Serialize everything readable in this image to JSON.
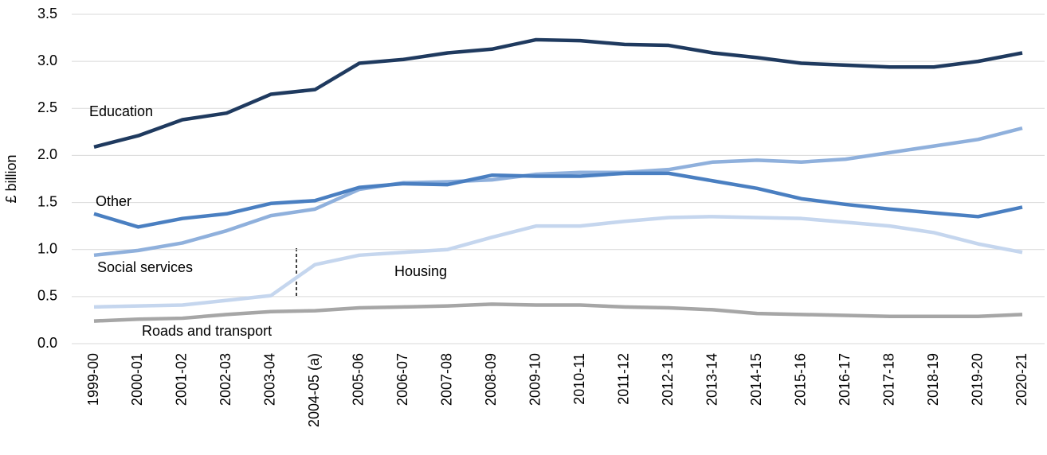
{
  "chart_data": {
    "type": "line",
    "y_label": "£ billion",
    "categories": [
      "1999-00",
      "2000-01",
      "2001-02",
      "2002-03",
      "2003-04",
      "2004-05 (a)",
      "2005-06",
      "2006-07",
      "2007-08",
      "2008-09",
      "2009-10",
      "2010-11",
      "2011-12",
      "2012-13",
      "2013-14",
      "2014-15",
      "2015-16",
      "2016-17",
      "2017-18",
      "2018-19",
      "2019-20",
      "2020-21"
    ],
    "ylim": [
      0,
      3.5
    ],
    "yticks": [
      {
        "value": 0,
        "label": "0.0"
      },
      0.5,
      {
        "value": 1,
        "label": "1.0"
      },
      1.5,
      {
        "value": 2,
        "label": "2.0"
      },
      2.5,
      {
        "value": 3,
        "label": "3.0"
      },
      3.5
    ],
    "grid": true,
    "series": [
      {
        "name": "Education",
        "color": "#1f3a5f",
        "values": [
          2.09,
          2.21,
          2.38,
          2.45,
          2.65,
          2.7,
          2.98,
          3.02,
          3.09,
          3.13,
          3.23,
          3.22,
          3.18,
          3.17,
          3.09,
          3.04,
          2.98,
          2.96,
          2.94,
          2.94,
          3.0,
          3.09
        ]
      },
      {
        "name": "Other",
        "color": "#4a7fc1",
        "values": [
          1.38,
          1.24,
          1.33,
          1.38,
          1.49,
          1.52,
          1.66,
          1.7,
          1.69,
          1.79,
          1.78,
          1.78,
          1.81,
          1.81,
          1.73,
          1.65,
          1.54,
          1.48,
          1.43,
          1.39,
          1.35,
          1.45
        ]
      },
      {
        "name": "Social services",
        "color": "#8fb0dc",
        "values": [
          0.94,
          0.99,
          1.07,
          1.2,
          1.36,
          1.43,
          1.64,
          1.71,
          1.72,
          1.74,
          1.8,
          1.82,
          1.82,
          1.85,
          1.93,
          1.95,
          1.93,
          1.96,
          2.03,
          2.1,
          2.17,
          2.29
        ]
      },
      {
        "name": "Housing",
        "color": "#c5d6ee",
        "values": [
          0.39,
          0.4,
          0.41,
          0.46,
          0.51,
          0.84,
          0.94,
          0.97,
          1.0,
          1.13,
          1.25,
          1.25,
          1.3,
          1.34,
          1.35,
          1.34,
          1.33,
          1.29,
          1.25,
          1.18,
          1.06,
          0.97
        ]
      },
      {
        "name": "Roads and transport",
        "color": "#a6a6a6",
        "values": [
          0.24,
          0.26,
          0.27,
          0.31,
          0.34,
          0.35,
          0.38,
          0.39,
          0.4,
          0.42,
          0.41,
          0.41,
          0.39,
          0.38,
          0.36,
          0.32,
          0.31,
          0.3,
          0.29,
          0.29,
          0.29,
          0.31
        ]
      }
    ]
  }
}
